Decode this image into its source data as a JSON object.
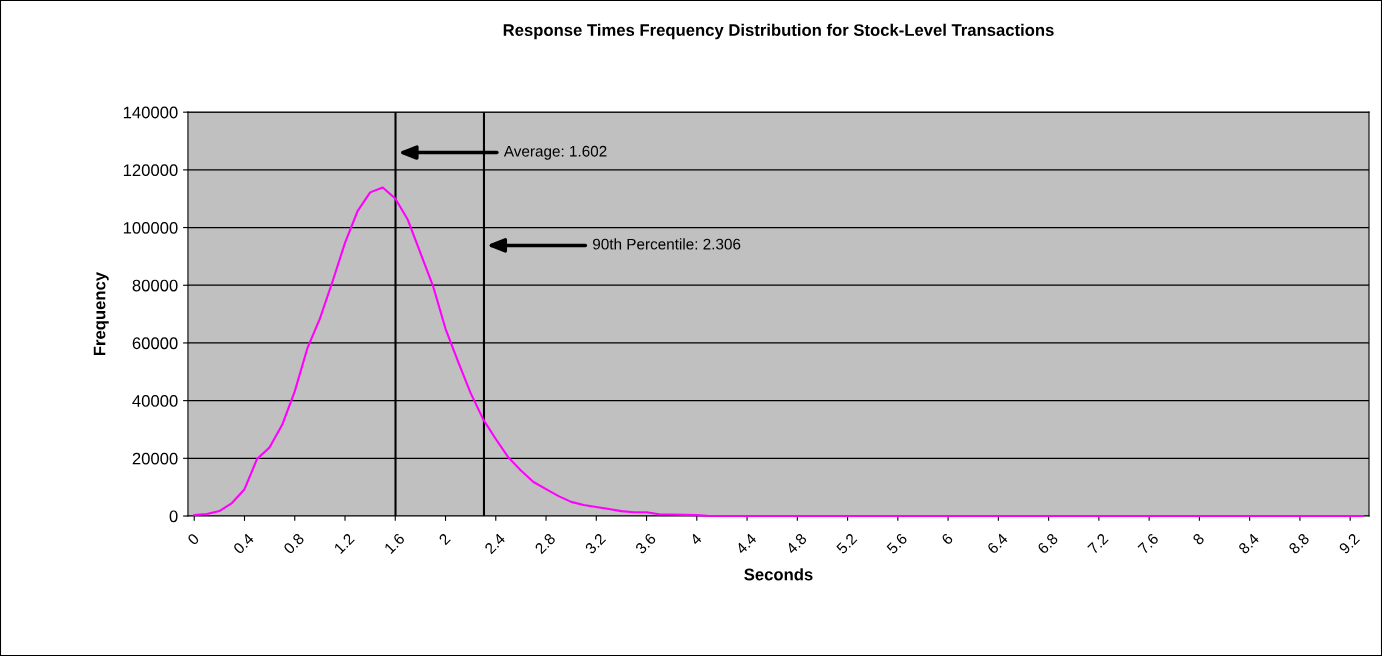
{
  "chart_data": {
    "type": "line",
    "title": "Response Times Frequency Distribution for Stock-Level Transactions",
    "xlabel": "Seconds",
    "ylabel": "Frequency",
    "x": [
      0.0,
      0.1,
      0.2,
      0.3,
      0.4,
      0.5,
      0.6,
      0.7,
      0.8,
      0.9,
      1.0,
      1.1,
      1.2,
      1.3,
      1.4,
      1.5,
      1.6,
      1.7,
      1.8,
      1.9,
      2.0,
      2.1,
      2.2,
      2.3,
      2.4,
      2.5,
      2.6,
      2.7,
      2.8,
      2.9,
      3.0,
      3.1,
      3.2,
      3.3,
      3.4,
      3.5,
      3.6,
      3.7,
      3.8,
      3.9,
      4.0,
      4.1,
      4.2,
      4.3,
      4.4,
      4.5,
      4.6,
      4.7,
      4.8,
      4.9,
      5.0,
      5.1,
      5.2,
      5.3,
      5.4,
      5.5,
      5.6,
      5.7,
      5.8,
      5.9,
      6.0,
      6.1,
      6.2,
      6.3,
      6.4,
      6.5,
      6.6,
      6.7,
      6.8,
      6.9,
      7.0,
      7.1,
      7.2,
      7.3,
      7.4,
      7.5,
      7.6,
      7.7,
      7.8,
      7.9,
      8.0,
      8.1,
      8.2,
      8.3,
      8.4,
      8.5,
      8.6,
      8.7,
      8.8,
      8.9,
      9.0,
      9.1,
      9.2,
      9.3
    ],
    "series": [
      {
        "color": "#ff00ff",
        "values": [
          300,
          700,
          1700,
          4500,
          9300,
          19800,
          23800,
          31600,
          43200,
          58100,
          68400,
          81200,
          94700,
          105700,
          112200,
          113900,
          110100,
          102700,
          91200,
          79800,
          64900,
          53500,
          42600,
          33500,
          26700,
          20300,
          15800,
          11800,
          9300,
          6900,
          4900,
          3800,
          3100,
          2400,
          1700,
          1300,
          1300,
          600,
          500,
          400,
          300,
          0,
          0,
          0,
          0,
          0,
          0,
          0,
          0,
          0,
          0,
          0,
          0,
          0,
          0,
          0,
          0,
          0,
          0,
          0,
          0,
          0,
          0,
          0,
          0,
          0,
          0,
          0,
          0,
          0,
          0,
          0,
          0,
          0,
          0,
          0,
          0,
          0,
          0,
          0,
          0,
          0,
          0,
          0,
          0,
          0,
          0,
          0,
          0,
          0,
          0,
          0,
          0,
          0
        ]
      }
    ],
    "xlim": [
      -0.05,
      9.35
    ],
    "xticks": [
      0,
      0.4,
      0.8,
      1.2,
      1.6,
      2,
      2.4,
      2.8,
      3.2,
      3.6,
      4,
      4.4,
      4.8,
      5.2,
      5.6,
      6,
      6.4,
      6.8,
      7.2,
      7.6,
      8,
      8.4,
      8.8,
      9.2
    ],
    "ylim": [
      0,
      140000
    ],
    "yticks": [
      0,
      20000,
      40000,
      60000,
      80000,
      100000,
      120000,
      140000
    ],
    "ref_lines": [
      {
        "axis": "x",
        "value": 1.602,
        "label": "Average: 1.602",
        "color": "#000000"
      },
      {
        "axis": "x",
        "value": 2.306,
        "label": "90th Percentile: 2.306",
        "color": "#000000"
      }
    ],
    "grid": "y",
    "legend": false,
    "marker": "none",
    "line_style": "solid"
  }
}
